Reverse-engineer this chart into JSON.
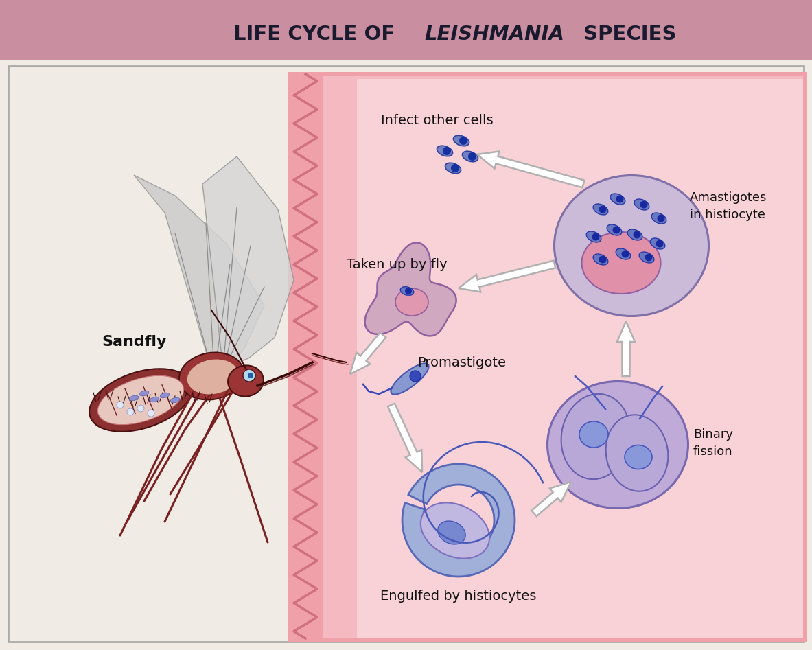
{
  "title_bg_color": "#c98fa0",
  "main_bg_color": "#f0ebe5",
  "skin_bg_color": "#f0a0a8",
  "labels": {
    "sandfly": "Sandfly",
    "infect": "Infect other cells",
    "amastigotes": "Amastigotes\nin histiocyte",
    "taken_up": "Taken up by fly",
    "promastigote": "Promastigote",
    "binary_fission": "Binary\nfission",
    "engulfed": "Engulfed by histiocytes"
  }
}
